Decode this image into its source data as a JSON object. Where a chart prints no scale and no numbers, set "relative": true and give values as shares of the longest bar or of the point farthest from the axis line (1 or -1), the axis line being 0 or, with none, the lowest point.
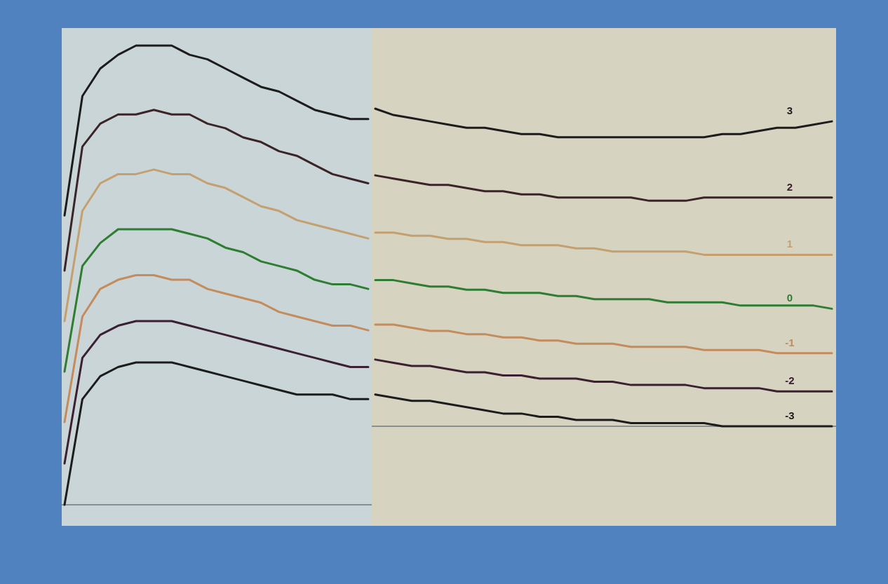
{
  "chart_data": [
    {
      "type": "line",
      "relative": true,
      "categories": [
        null,
        null,
        null,
        null,
        null,
        null,
        null,
        null,
        null,
        null,
        null,
        null,
        null,
        null,
        null,
        null,
        null,
        null
      ],
      "series": [
        {
          "color": "#1c1c1c",
          "values": [
            0.63,
            0.89,
            0.95,
            0.98,
            1.0,
            1.0,
            1.0,
            0.98,
            0.97,
            0.95,
            0.93,
            0.91,
            0.9,
            0.88,
            0.86,
            0.85,
            0.84,
            0.84
          ]
        },
        {
          "color": "#3a2428",
          "values": [
            0.51,
            0.78,
            0.83,
            0.85,
            0.85,
            0.86,
            0.85,
            0.85,
            0.83,
            0.82,
            0.8,
            0.79,
            0.77,
            0.76,
            0.74,
            0.72,
            0.71,
            0.7
          ]
        },
        {
          "color": "#c4a070",
          "values": [
            0.4,
            0.64,
            0.7,
            0.72,
            0.72,
            0.73,
            0.72,
            0.72,
            0.7,
            0.69,
            0.67,
            0.65,
            0.64,
            0.62,
            0.61,
            0.6,
            0.59,
            0.58
          ]
        },
        {
          "color": "#2e7d32",
          "values": [
            0.29,
            0.52,
            0.57,
            0.6,
            0.6,
            0.6,
            0.6,
            0.59,
            0.58,
            0.56,
            0.55,
            0.53,
            0.52,
            0.51,
            0.49,
            0.48,
            0.48,
            0.47
          ]
        },
        {
          "color": "#c48c5c",
          "values": [
            0.18,
            0.41,
            0.47,
            0.49,
            0.5,
            0.5,
            0.49,
            0.49,
            0.47,
            0.46,
            0.45,
            0.44,
            0.42,
            0.41,
            0.4,
            0.39,
            0.39,
            0.38
          ]
        },
        {
          "color": "#3a2030",
          "values": [
            0.09,
            0.32,
            0.37,
            0.39,
            0.4,
            0.4,
            0.4,
            0.39,
            0.38,
            0.37,
            0.36,
            0.35,
            0.34,
            0.33,
            0.32,
            0.31,
            0.3,
            0.3
          ]
        },
        {
          "color": "#1c1c1c",
          "values": [
            0.0,
            0.23,
            0.28,
            0.3,
            0.31,
            0.31,
            0.31,
            0.3,
            0.29,
            0.28,
            0.27,
            0.26,
            0.25,
            0.24,
            0.24,
            0.24,
            0.23,
            0.23
          ]
        }
      ]
    },
    {
      "type": "line",
      "relative": true,
      "categories": [
        null,
        null,
        null,
        null,
        null,
        null,
        null,
        null,
        null,
        null,
        null,
        null,
        null,
        null,
        null,
        null,
        null,
        null,
        null,
        null,
        null,
        null,
        null,
        null,
        null,
        null
      ],
      "series": [
        {
          "name": "3",
          "color": "#1c1c1c",
          "values": [
            1.0,
            0.98,
            0.97,
            0.96,
            0.95,
            0.94,
            0.94,
            0.93,
            0.92,
            0.92,
            0.91,
            0.91,
            0.91,
            0.91,
            0.91,
            0.91,
            0.91,
            0.91,
            0.91,
            0.92,
            0.92,
            0.93,
            0.94,
            0.94,
            0.95,
            0.96
          ]
        },
        {
          "name": "2",
          "color": "#3a2428",
          "values": [
            0.79,
            0.78,
            0.77,
            0.76,
            0.76,
            0.75,
            0.74,
            0.74,
            0.73,
            0.73,
            0.72,
            0.72,
            0.72,
            0.72,
            0.72,
            0.71,
            0.71,
            0.71,
            0.72,
            0.72,
            0.72,
            0.72,
            0.72,
            0.72,
            0.72,
            0.72
          ]
        },
        {
          "name": "1",
          "color": "#c4a070",
          "values": [
            0.61,
            0.61,
            0.6,
            0.6,
            0.59,
            0.59,
            0.58,
            0.58,
            0.57,
            0.57,
            0.57,
            0.56,
            0.56,
            0.55,
            0.55,
            0.55,
            0.55,
            0.55,
            0.54,
            0.54,
            0.54,
            0.54,
            0.54,
            0.54,
            0.54,
            0.54
          ]
        },
        {
          "name": "0",
          "color": "#2e7d32",
          "values": [
            0.46,
            0.46,
            0.45,
            0.44,
            0.44,
            0.43,
            0.43,
            0.42,
            0.42,
            0.42,
            0.41,
            0.41,
            0.4,
            0.4,
            0.4,
            0.4,
            0.39,
            0.39,
            0.39,
            0.39,
            0.38,
            0.38,
            0.38,
            0.38,
            0.38,
            0.37
          ]
        },
        {
          "name": "-1",
          "color": "#c48c5c",
          "values": [
            0.32,
            0.32,
            0.31,
            0.3,
            0.3,
            0.29,
            0.29,
            0.28,
            0.28,
            0.27,
            0.27,
            0.26,
            0.26,
            0.26,
            0.25,
            0.25,
            0.25,
            0.25,
            0.24,
            0.24,
            0.24,
            0.24,
            0.23,
            0.23,
            0.23,
            0.23
          ]
        },
        {
          "name": "-2",
          "color": "#3a2030",
          "values": [
            0.21,
            0.2,
            0.19,
            0.19,
            0.18,
            0.17,
            0.17,
            0.16,
            0.16,
            0.15,
            0.15,
            0.15,
            0.14,
            0.14,
            0.13,
            0.13,
            0.13,
            0.13,
            0.12,
            0.12,
            0.12,
            0.12,
            0.11,
            0.11,
            0.11,
            0.11
          ]
        },
        {
          "name": "-3",
          "color": "#1c1c1c",
          "values": [
            0.1,
            0.09,
            0.08,
            0.08,
            0.07,
            0.06,
            0.05,
            0.04,
            0.04,
            0.03,
            0.03,
            0.02,
            0.02,
            0.02,
            0.01,
            0.01,
            0.01,
            0.01,
            0.01,
            0.0,
            0.0,
            0.0,
            0.0,
            0.0,
            0.0,
            0.0
          ]
        }
      ]
    }
  ]
}
